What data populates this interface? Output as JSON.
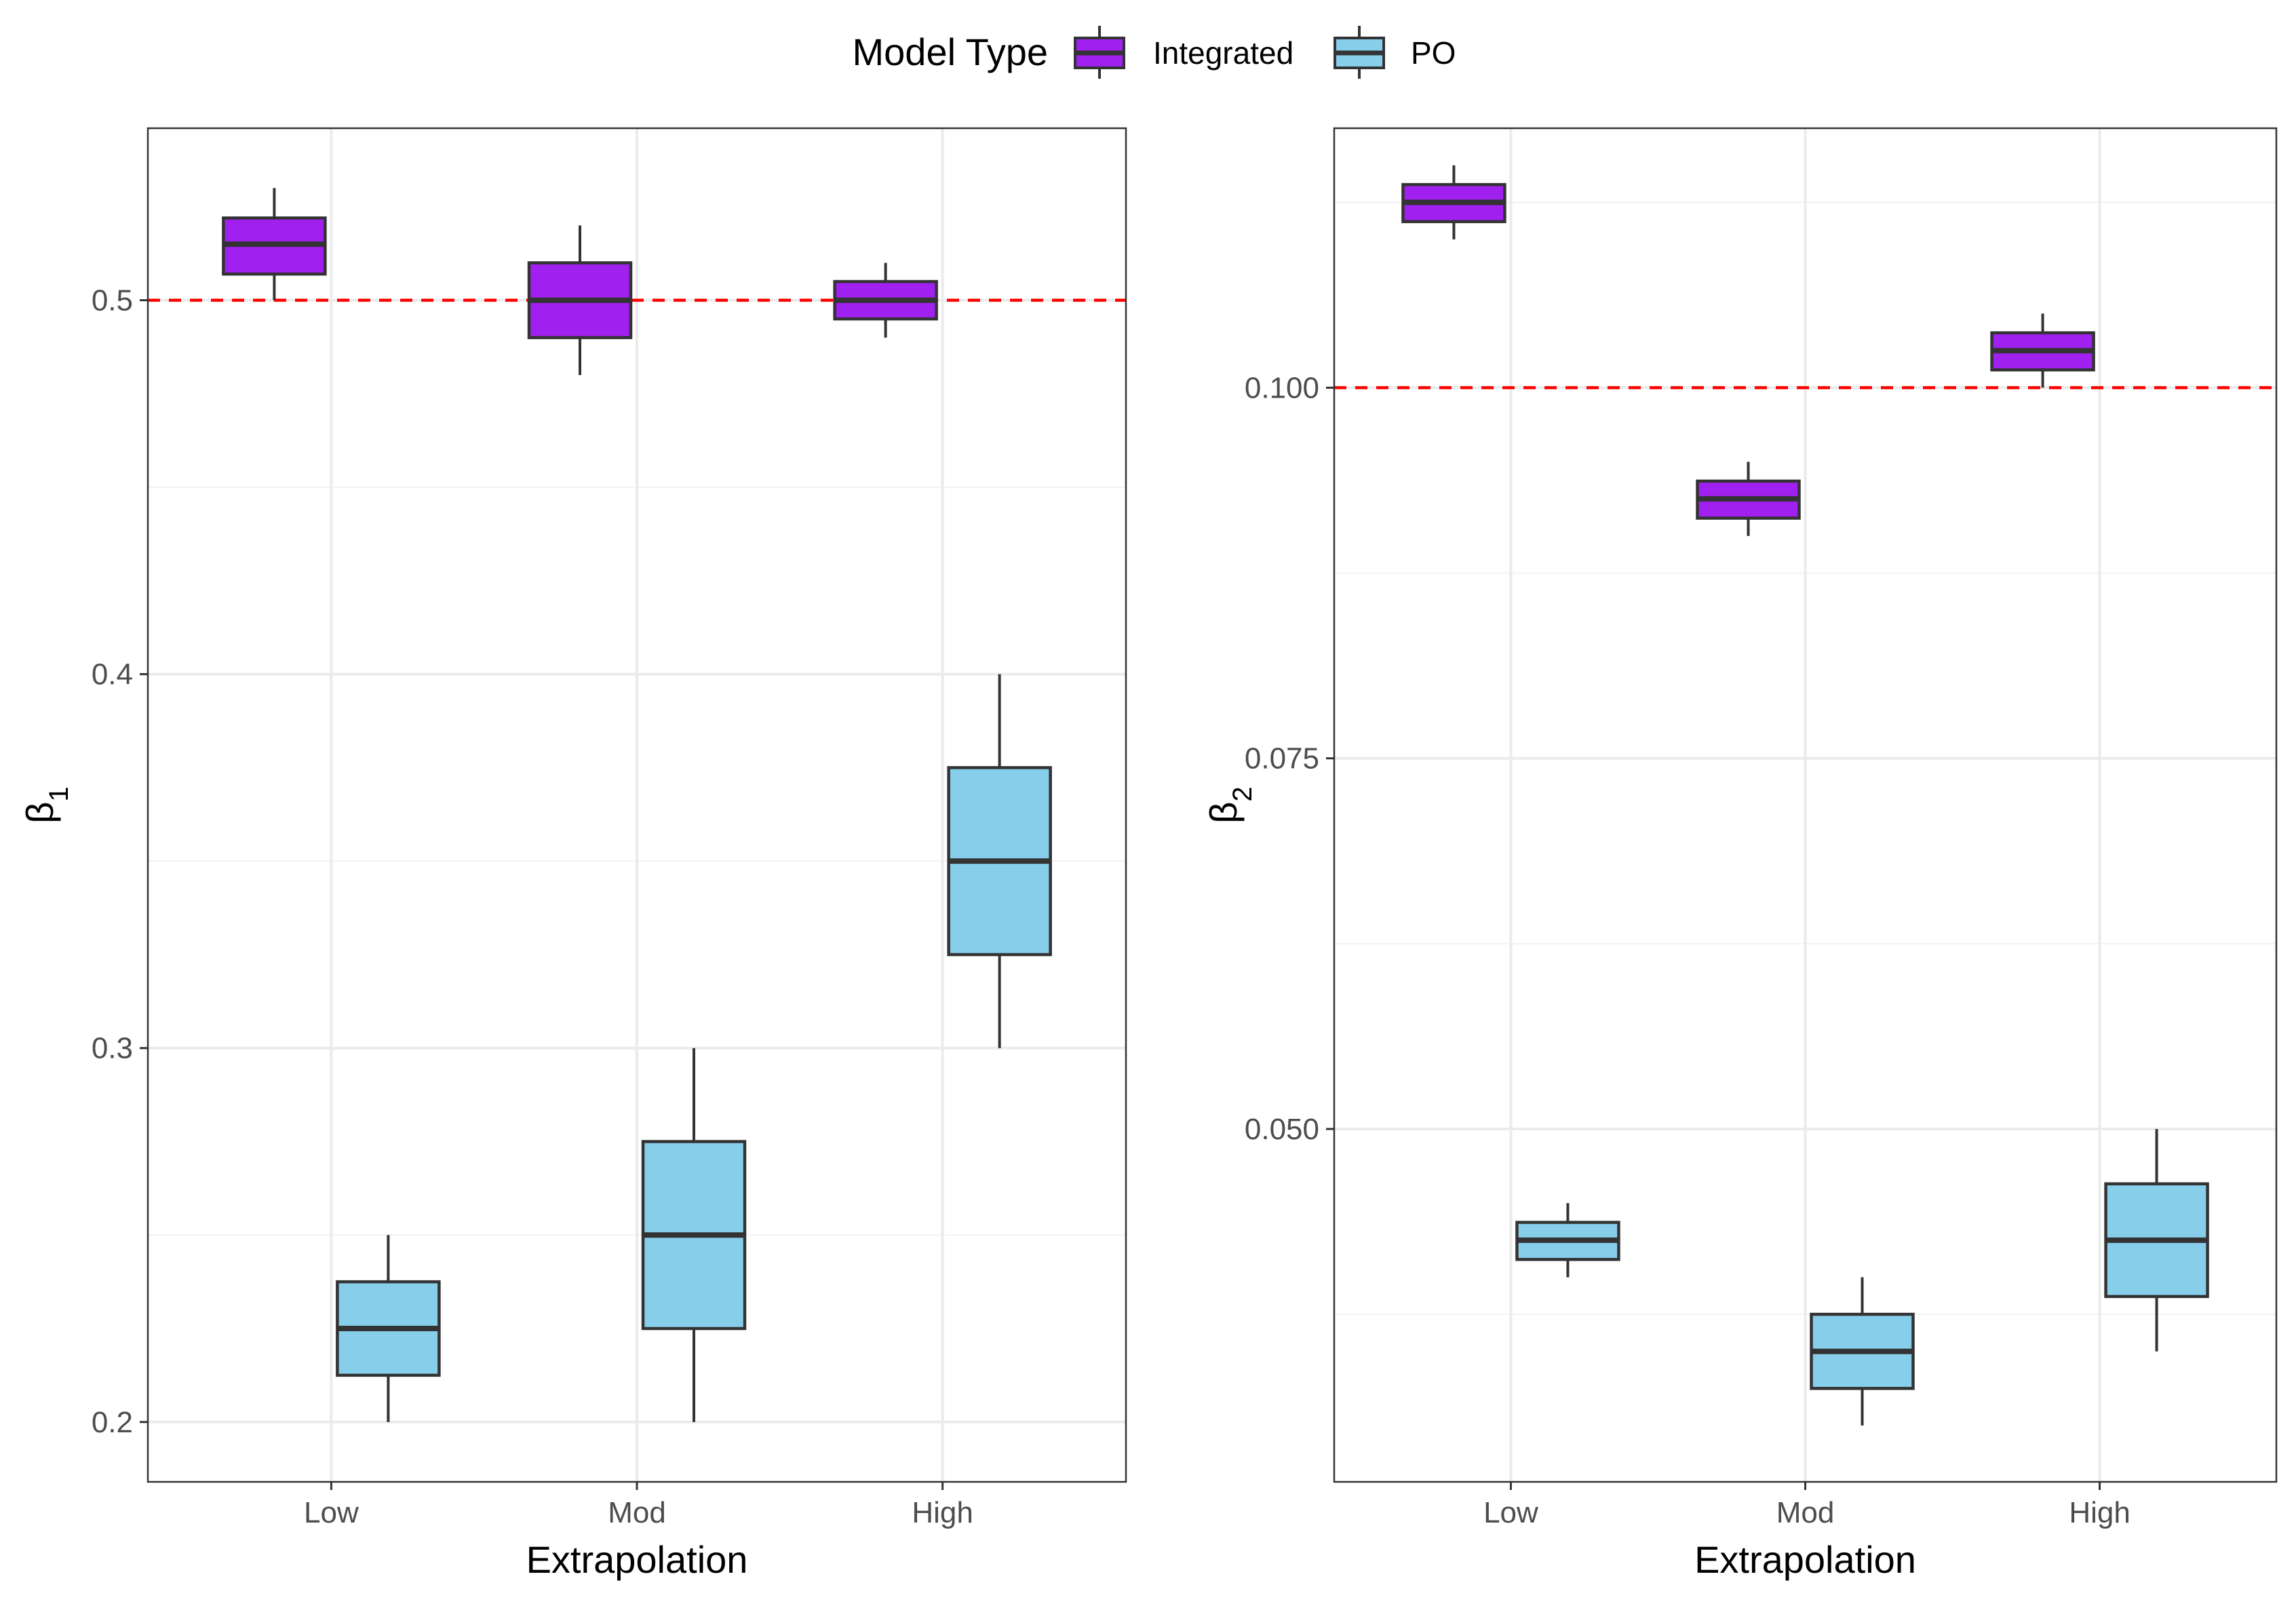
{
  "chart_data": {
    "type": "box",
    "legend": {
      "title": "Model Type",
      "position": "top",
      "entries": [
        {
          "name": "Integrated",
          "color": "#A020F0"
        },
        {
          "name": "PO",
          "color": "#87CEEB"
        }
      ]
    },
    "styles": {
      "reference_line_color": "#FF0000",
      "box_stroke": "#333333",
      "panel_border": "#333333",
      "grid_major": "#EBEBEB",
      "grid_minor": "#F2F2F2"
    },
    "grid": true,
    "panels": [
      {
        "xlabel": "Extrapolation",
        "ylabel_symbol": "β",
        "ylabel_subscript": "1",
        "categories": [
          "Low",
          "Mod",
          "High"
        ],
        "ylim": [
          0.184,
          0.546
        ],
        "yticks": [
          0.2,
          0.3,
          0.4,
          0.5
        ],
        "ytick_labels": [
          "0.2",
          "0.3",
          "0.4",
          "0.5"
        ],
        "reference_line": 0.5,
        "series": [
          {
            "name": "Integrated",
            "boxes": [
              {
                "category": "Low",
                "min": 0.5,
                "q1": 0.507,
                "median": 0.515,
                "q3": 0.522,
                "max": 0.53
              },
              {
                "category": "Mod",
                "min": 0.48,
                "q1": 0.49,
                "median": 0.5,
                "q3": 0.51,
                "max": 0.52
              },
              {
                "category": "High",
                "min": 0.49,
                "q1": 0.495,
                "median": 0.5,
                "q3": 0.505,
                "max": 0.51
              }
            ]
          },
          {
            "name": "PO",
            "boxes": [
              {
                "category": "Low",
                "min": 0.2,
                "q1": 0.2125,
                "median": 0.225,
                "q3": 0.2375,
                "max": 0.25
              },
              {
                "category": "Mod",
                "min": 0.2,
                "q1": 0.225,
                "median": 0.25,
                "q3": 0.275,
                "max": 0.3
              },
              {
                "category": "High",
                "min": 0.3,
                "q1": 0.325,
                "median": 0.35,
                "q3": 0.375,
                "max": 0.4
              }
            ]
          }
        ]
      },
      {
        "xlabel": "Extrapolation",
        "ylabel_symbol": "β",
        "ylabel_subscript": "2",
        "categories": [
          "Low",
          "Mod",
          "High"
        ],
        "ylim": [
          0.0262,
          0.1175
        ],
        "yticks": [
          0.05,
          0.075,
          0.1
        ],
        "ytick_labels": [
          "0.050",
          "0.075",
          "0.100"
        ],
        "reference_line": 0.1,
        "series": [
          {
            "name": "Integrated",
            "boxes": [
              {
                "category": "Low",
                "min": 0.11,
                "q1": 0.1112,
                "median": 0.1125,
                "q3": 0.1137,
                "max": 0.115
              },
              {
                "category": "Mod",
                "min": 0.09,
                "q1": 0.0912,
                "median": 0.0925,
                "q3": 0.0937,
                "max": 0.095
              },
              {
                "category": "High",
                "min": 0.1,
                "q1": 0.1012,
                "median": 0.1025,
                "q3": 0.1037,
                "max": 0.105
              }
            ]
          },
          {
            "name": "PO",
            "boxes": [
              {
                "category": "Low",
                "min": 0.04,
                "q1": 0.0412,
                "median": 0.0425,
                "q3": 0.0437,
                "max": 0.045
              },
              {
                "category": "Mod",
                "min": 0.03,
                "q1": 0.0325,
                "median": 0.035,
                "q3": 0.0375,
                "max": 0.04
              },
              {
                "category": "High",
                "min": 0.035,
                "q1": 0.0387,
                "median": 0.0425,
                "q3": 0.0463,
                "max": 0.05
              }
            ]
          }
        ]
      }
    ]
  }
}
